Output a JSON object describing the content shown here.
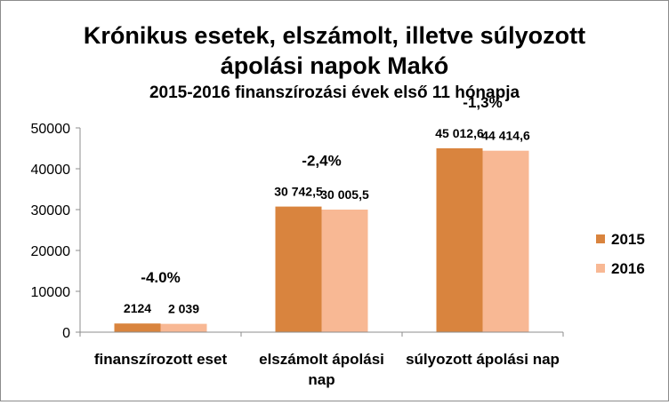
{
  "chart_data": {
    "type": "bar",
    "title_lines": [
      "Krónikus esetek, elszámolt, illetve súlyozott",
      "ápolási napok Makó"
    ],
    "subtitle": "2015-2016 finanszírozási  évek első 11 hónapja",
    "categories": [
      "finanszírozott eset",
      "elszámolt ápolási nap",
      "súlyozott ápolási nap"
    ],
    "series": [
      {
        "name": "2015",
        "color": "#d9843e",
        "values": [
          2124,
          30742.5,
          45012.6
        ],
        "labels": [
          "2124",
          "30 742,5",
          "45 012,6"
        ]
      },
      {
        "name": "2016",
        "color": "#f8b894",
        "values": [
          2039,
          30005.5,
          44414.6
        ],
        "labels": [
          "2 039",
          "30 005,5",
          "44 414,6"
        ]
      }
    ],
    "changes": [
      "-4.0%",
      "-2,4%",
      "-1,3%"
    ],
    "ylim": [
      0,
      50000
    ],
    "yticks": [
      0,
      10000,
      20000,
      30000,
      40000,
      50000
    ],
    "ytick_labels": [
      "0",
      "10000",
      "20000",
      "30000",
      "40000",
      "50000"
    ],
    "grid": false,
    "legend_position": "right"
  }
}
